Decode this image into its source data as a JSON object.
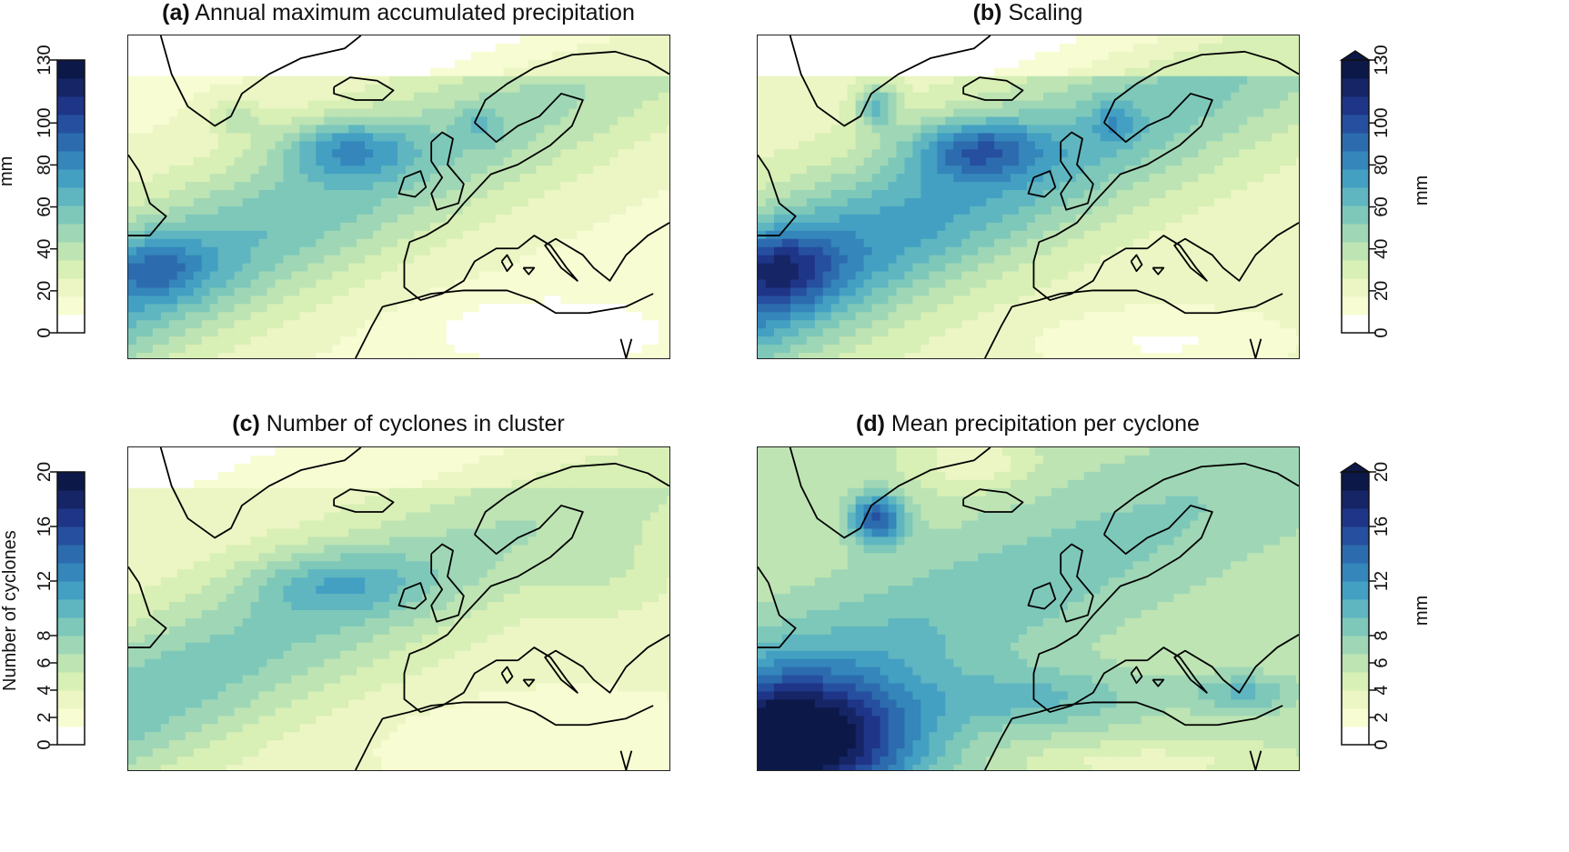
{
  "panels": [
    {
      "id": "a",
      "letter": "(a)",
      "title": "Annual maximum accumulated precipitation",
      "colorbar": {
        "side": "left",
        "ticks": [
          "0",
          "20",
          "40",
          "60",
          "80",
          "100",
          "130"
        ],
        "tick_values": [
          0,
          20,
          40,
          60,
          80,
          100,
          130
        ],
        "max": 130,
        "unit": "mm",
        "extend_arrow": false
      },
      "field": "accumulated"
    },
    {
      "id": "b",
      "letter": "(b)",
      "title": "Scaling",
      "colorbar": {
        "side": "right",
        "ticks": [
          "0",
          "20",
          "40",
          "60",
          "80",
          "100",
          "130"
        ],
        "tick_values": [
          0,
          20,
          40,
          60,
          80,
          100,
          130
        ],
        "max": 130,
        "unit": "mm",
        "extend_arrow": true
      },
      "field": "scaling"
    },
    {
      "id": "c",
      "letter": "(c)",
      "title": "Number of cyclones in cluster",
      "colorbar": {
        "side": "left",
        "ticks": [
          "0",
          "2",
          "4",
          "6",
          "8",
          "12",
          "16",
          "20"
        ],
        "tick_values": [
          0,
          2,
          4,
          6,
          8,
          12,
          16,
          20
        ],
        "max": 20,
        "unit": "Number of cyclones",
        "extend_arrow": false
      },
      "field": "cyclones"
    },
    {
      "id": "d",
      "letter": "(d)",
      "title": "Mean precipitation per cyclone",
      "colorbar": {
        "side": "right",
        "ticks": [
          "0",
          "2",
          "4",
          "6",
          "8",
          "12",
          "16",
          "20"
        ],
        "tick_values": [
          0,
          2,
          4,
          6,
          8,
          12,
          16,
          20
        ],
        "max": 20,
        "unit": "mm",
        "extend_arrow": true
      },
      "field": "mean"
    }
  ],
  "colors": {
    "palette": [
      "#ffffff",
      "#f7fcd3",
      "#ebf6c4",
      "#d8efb5",
      "#bee4b3",
      "#9fd7b6",
      "#7ec8ba",
      "#5fb6c0",
      "#44a0c2",
      "#3486bb",
      "#2c6cae",
      "#264fa0",
      "#1f3587",
      "#162566",
      "#0c1848"
    ],
    "coast": "#000000"
  }
}
